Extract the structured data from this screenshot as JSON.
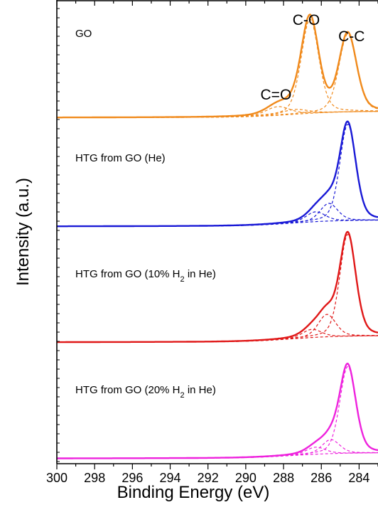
{
  "chart_data": {
    "type": "line",
    "xlabel": "Binding Energy (eV)",
    "ylabel": "Intensity (a.u.)",
    "xlim": [
      300,
      283
    ],
    "x_reversed": true,
    "x_ticks": [
      300,
      298,
      296,
      294,
      292,
      290,
      288,
      286,
      284
    ],
    "grid": false,
    "panels": [
      {
        "label": "GO",
        "label_parts": [
          {
            "text": "GO",
            "sub": ""
          }
        ],
        "color": "#f08a1c",
        "peaks": [
          {
            "center": 288.3,
            "height": 0.09,
            "width": 0.75
          },
          {
            "center": 287.4,
            "height": 0.05,
            "width": 0.8
          },
          {
            "center": 286.6,
            "height": 0.98,
            "width": 0.55
          },
          {
            "center": 284.6,
            "height": 0.81,
            "width": 0.55
          }
        ],
        "peak_labels": [
          {
            "text": "C=O",
            "x": 288.4
          },
          {
            "text": "C-O",
            "x": 286.8
          },
          {
            "text": "C-C",
            "x": 284.4
          }
        ]
      },
      {
        "label": "HTG from GO (He)",
        "label_parts": [
          {
            "text": "HTG from GO (He)",
            "sub": ""
          }
        ],
        "color": "#1919d6",
        "peaks": [
          {
            "center": 286.3,
            "height": 0.1,
            "width": 0.6
          },
          {
            "center": 285.6,
            "height": 0.18,
            "width": 0.55
          },
          {
            "center": 284.6,
            "height": 0.98,
            "width": 0.5
          }
        ],
        "peak_labels": []
      },
      {
        "label": "HTG from GO (10% H2 in He)",
        "label_parts": [
          {
            "text": "HTG from GO (10% H",
            "sub": ""
          },
          {
            "text": "2",
            "sub": "sub"
          },
          {
            "text": " in He)",
            "sub": ""
          }
        ],
        "color": "#e01818",
        "peaks": [
          {
            "center": 286.5,
            "height": 0.08,
            "width": 0.6
          },
          {
            "center": 285.7,
            "height": 0.22,
            "width": 0.55
          },
          {
            "center": 284.6,
            "height": 1.0,
            "width": 0.5
          }
        ],
        "peak_labels": []
      },
      {
        "label": "HTG from GO (20% H2 in He)",
        "label_parts": [
          {
            "text": "HTG from GO (20% H",
            "sub": ""
          },
          {
            "text": "2",
            "sub": "sub"
          },
          {
            "text": " in He)",
            "sub": ""
          }
        ],
        "color": "#ee22dd",
        "peaks": [
          {
            "center": 286.3,
            "height": 0.08,
            "width": 0.6
          },
          {
            "center": 285.5,
            "height": 0.16,
            "width": 0.55
          },
          {
            "center": 284.6,
            "height": 0.99,
            "width": 0.5
          }
        ],
        "peak_labels": []
      }
    ]
  }
}
